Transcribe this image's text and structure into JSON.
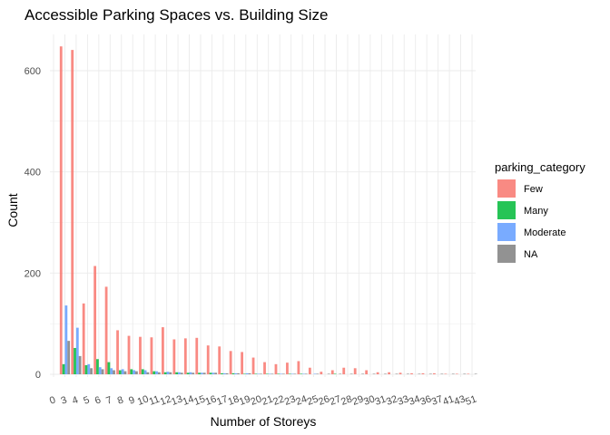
{
  "chart_data": {
    "type": "bar",
    "title": "Accessible Parking Spaces vs. Building Size",
    "xlabel": "Number of Storeys",
    "ylabel": "Count",
    "ylim": [
      0,
      680
    ],
    "y_ticks": [
      0,
      200,
      400,
      600
    ],
    "grid": true,
    "legend_position": "right",
    "legend_title": "parking_category",
    "categories": [
      "0",
      "3",
      "4",
      "5",
      "6",
      "7",
      "8",
      "9",
      "10",
      "11",
      "12",
      "13",
      "14",
      "15",
      "16",
      "17",
      "18",
      "19",
      "20",
      "21",
      "22",
      "23",
      "24",
      "25",
      "26",
      "27",
      "28",
      "29",
      "30",
      "31",
      "32",
      "33",
      "34",
      "36",
      "37",
      "41",
      "43",
      "51"
    ],
    "series": [
      {
        "name": "Few",
        "color": "#F8766D",
        "values": [
          0,
          648,
          641,
          140,
          214,
          173,
          87,
          76,
          74,
          73,
          93,
          69,
          71,
          72,
          57,
          55,
          46,
          44,
          33,
          24,
          20,
          23,
          26,
          13,
          5,
          8,
          13,
          12,
          8,
          4,
          4,
          3,
          2,
          2,
          2,
          1,
          1,
          1
        ]
      },
      {
        "name": "Many",
        "color": "#00BA38",
        "values": [
          0,
          20,
          52,
          18,
          30,
          24,
          8,
          10,
          10,
          6,
          4,
          4,
          3,
          3,
          3,
          2,
          2,
          1,
          1,
          1,
          1,
          1,
          1,
          0,
          0,
          1,
          0,
          0,
          0,
          0,
          0,
          0,
          0,
          0,
          0,
          0,
          0,
          0
        ]
      },
      {
        "name": "Moderate",
        "color": "#619CFF",
        "values": [
          0,
          136,
          92,
          20,
          14,
          12,
          10,
          8,
          8,
          6,
          5,
          4,
          4,
          3,
          3,
          2,
          2,
          2,
          1,
          1,
          1,
          1,
          1,
          1,
          0,
          0,
          0,
          0,
          0,
          0,
          0,
          0,
          0,
          0,
          0,
          0,
          0,
          0
        ]
      },
      {
        "name": "NA",
        "color": "#7F7F7F",
        "values": [
          0,
          66,
          36,
          12,
          10,
          8,
          6,
          6,
          4,
          4,
          4,
          3,
          3,
          3,
          3,
          2,
          2,
          2,
          1,
          1,
          1,
          1,
          1,
          1,
          1,
          1,
          1,
          1,
          1,
          1,
          1,
          1,
          1,
          1,
          1,
          1,
          1,
          1
        ]
      }
    ]
  }
}
